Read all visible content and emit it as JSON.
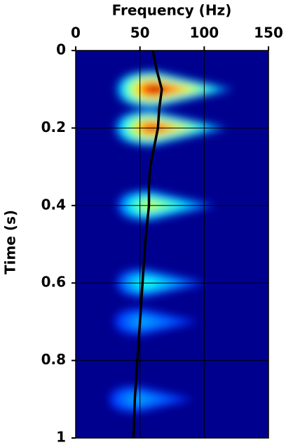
{
  "chart_data": {
    "type": "spectrogram",
    "title": "Frequency (Hz)",
    "y_label": "Time (s)",
    "xlim": [
      0,
      150
    ],
    "ylim": [
      0,
      1
    ],
    "xticks": [
      0,
      50,
      100,
      150
    ],
    "yticks": [
      0,
      0.2,
      0.4,
      0.6,
      0.8,
      1
    ],
    "grid": true,
    "background": "#00008f",
    "events": [
      {
        "time": 0.1,
        "frequency": 62,
        "amplitude": 1.0
      },
      {
        "time": 0.2,
        "frequency": 60,
        "amplitude": 0.9
      },
      {
        "time": 0.4,
        "frequency": 58,
        "amplitude": 0.6
      },
      {
        "time": 0.6,
        "frequency": 55,
        "amplitude": 0.42
      },
      {
        "time": 0.7,
        "frequency": 52,
        "amplitude": 0.3
      },
      {
        "time": 0.9,
        "frequency": 48,
        "amplitude": 0.3
      }
    ],
    "line": {
      "color": "#000000",
      "time": [
        0,
        0.05,
        0.1,
        0.15,
        0.2,
        0.25,
        0.3,
        0.35,
        0.4,
        0.5,
        0.6,
        0.7,
        0.8,
        0.9,
        1
      ],
      "frequency": [
        60,
        63,
        67,
        65,
        64,
        61,
        58,
        57,
        57,
        54,
        52,
        50,
        48,
        46,
        45
      ]
    }
  }
}
